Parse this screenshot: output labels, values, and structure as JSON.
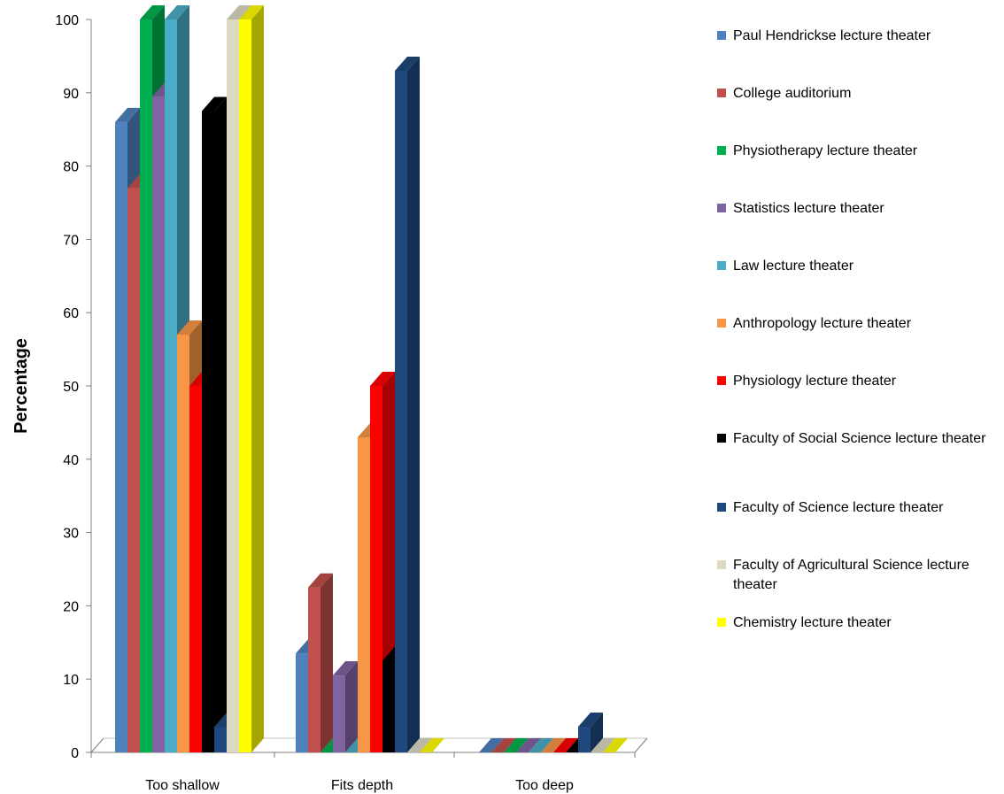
{
  "chart_data": {
    "type": "bar",
    "title": "",
    "xlabel": "",
    "ylabel": "Percentage",
    "ylim": [
      0,
      100
    ],
    "yticks": [
      0,
      10,
      20,
      30,
      40,
      50,
      60,
      70,
      80,
      90,
      100
    ],
    "categories": [
      "Too shallow",
      "Fits depth",
      "Too deep"
    ],
    "legend_position": "right",
    "grid": false,
    "series": [
      {
        "name": "Paul Hendrickse lecture theater",
        "color": "#4F81BD",
        "values": [
          86,
          13.5,
          0
        ]
      },
      {
        "name": "College auditorium",
        "color": "#C0504D",
        "values": [
          77,
          22.5,
          0
        ]
      },
      {
        "name": "Physiotherapy lecture theater",
        "color": "#00B050",
        "values": [
          100,
          0,
          0
        ]
      },
      {
        "name": "Statistics lecture theater",
        "color": "#8064A2",
        "values": [
          89.5,
          10.5,
          0
        ]
      },
      {
        "name": "Law lecture theater",
        "color": "#4BACC6",
        "values": [
          100,
          0,
          0
        ]
      },
      {
        "name": "Anthropology lecture theater",
        "color": "#F79646",
        "values": [
          57,
          43,
          0
        ]
      },
      {
        "name": "Physiology lecture theater",
        "color": "#FF0000",
        "values": [
          50,
          50,
          0
        ]
      },
      {
        "name": "Faculty of Social Science lecture theater",
        "color": "#000000",
        "values": [
          87.5,
          12.5,
          0
        ]
      },
      {
        "name": "Faculty of Science lecture theater",
        "color": "#1F497D",
        "values": [
          3.5,
          93,
          3.5
        ]
      },
      {
        "name": "Faculty of Agricultural Science lecture theater",
        "color": "#DDD9C3",
        "values": [
          100,
          0,
          0
        ]
      },
      {
        "name": "Chemistry lecture theater",
        "color": "#FFFF00",
        "values": [
          100,
          0,
          0
        ]
      }
    ]
  }
}
